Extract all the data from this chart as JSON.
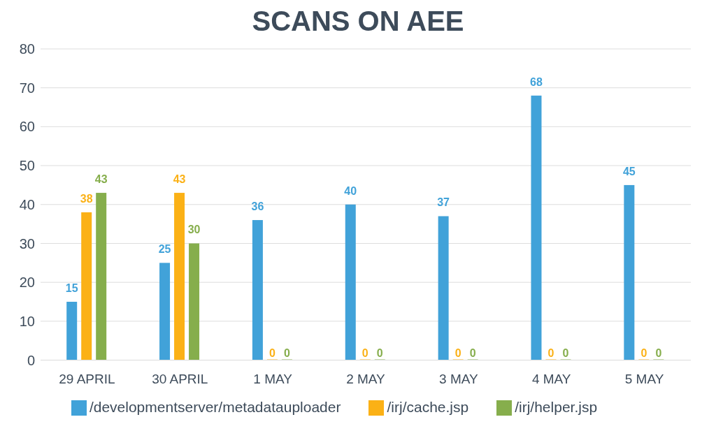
{
  "chart_data": {
    "type": "bar",
    "title": "SCANS ON AEE",
    "categories": [
      "29 APRIL",
      "30 APRIL",
      "1 MAY",
      "2 MAY",
      "3 MAY",
      "4 MAY",
      "5 MAY"
    ],
    "series": [
      {
        "name": "/developmentserver/metadatauploader",
        "color": "#41a2d9",
        "values": [
          15,
          25,
          36,
          40,
          37,
          68,
          45
        ]
      },
      {
        "name": "/irj/cache.jsp",
        "color": "#fbb116",
        "values": [
          38,
          43,
          0,
          0,
          0,
          0,
          0
        ]
      },
      {
        "name": "/irj/helper.jsp",
        "color": "#86ae4c",
        "values": [
          43,
          30,
          0,
          0,
          0,
          0,
          0
        ]
      }
    ],
    "ylim": [
      0,
      80
    ],
    "yticks": [
      0,
      10,
      20,
      30,
      40,
      50,
      60,
      70,
      80
    ],
    "grid": "y",
    "legend": "bottom",
    "data_labels": true
  }
}
